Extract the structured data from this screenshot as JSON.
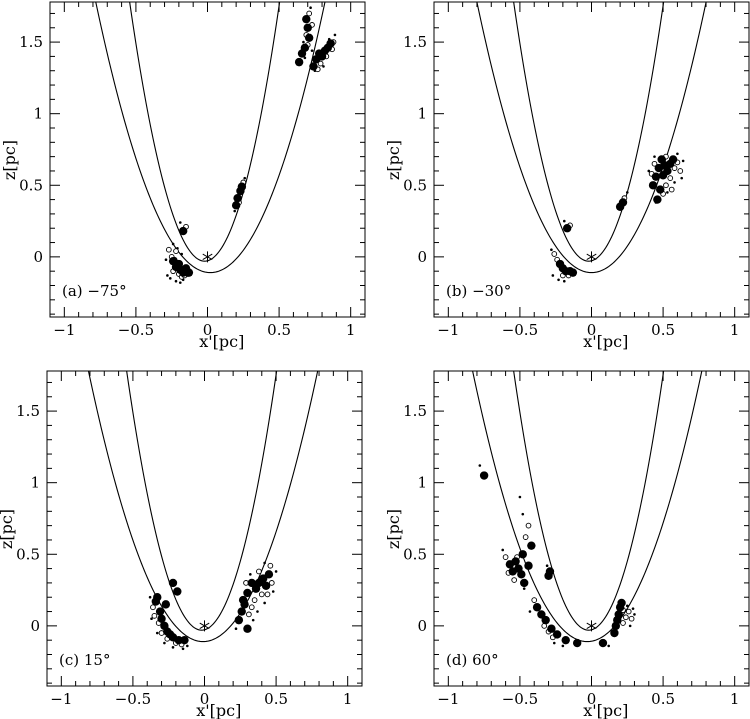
{
  "figure": {
    "xlabel": "x'[pc]",
    "ylabel": "z[pc]"
  },
  "chart_data": [
    {
      "type": "scatter",
      "label": "(a)  −75°",
      "xlabel": "x'[pc]",
      "ylabel": "z[pc]",
      "xlim": [
        -1.1,
        1.1
      ],
      "ylim": [
        -0.42,
        1.78
      ],
      "xticks": [
        -1,
        -0.5,
        0,
        0.5,
        1
      ],
      "yticks": [
        0,
        0.5,
        1,
        1.5
      ],
      "xtick_labels": [
        "−1",
        "−0.5",
        "0",
        "0.5",
        "1"
      ],
      "ytick_labels": [
        "0",
        "0.5",
        "1",
        "1.5"
      ],
      "star": [
        0,
        0
      ],
      "curves": [
        {
          "vertex": [
            0.02,
            -0.11
          ],
          "coef": 2.95
        },
        {
          "vertex": [
            -0.02,
            -0.03
          ],
          "coef": 6.6
        }
      ],
      "filled_points": [
        [
          -0.24,
          -0.03
        ],
        [
          -0.22,
          -0.07
        ],
        [
          -0.2,
          -0.05
        ],
        [
          -0.19,
          -0.09
        ],
        [
          -0.17,
          -0.11
        ],
        [
          -0.15,
          -0.08
        ],
        [
          -0.13,
          -0.11
        ],
        [
          -0.17,
          0.18
        ],
        [
          0.2,
          0.36
        ],
        [
          0.21,
          0.41
        ],
        [
          0.23,
          0.46
        ],
        [
          0.24,
          0.49
        ],
        [
          0.69,
          1.66
        ],
        [
          0.7,
          1.6
        ],
        [
          0.71,
          1.53
        ],
        [
          0.68,
          1.46
        ],
        [
          0.66,
          1.42
        ],
        [
          0.64,
          1.36
        ],
        [
          0.74,
          1.33
        ],
        [
          0.76,
          1.38
        ],
        [
          0.78,
          1.42
        ],
        [
          0.8,
          1.4
        ],
        [
          0.82,
          1.44
        ],
        [
          0.84,
          1.46
        ],
        [
          0.86,
          1.49
        ]
      ],
      "open_points": [
        [
          -0.27,
          0.05
        ],
        [
          -0.25,
          0.0
        ],
        [
          -0.23,
          -0.02
        ],
        [
          -0.21,
          -0.04
        ],
        [
          -0.24,
          -0.1
        ],
        [
          -0.2,
          -0.12
        ],
        [
          -0.18,
          -0.14
        ],
        [
          -0.16,
          -0.13
        ],
        [
          -0.14,
          -0.12
        ],
        [
          -0.22,
          0.04
        ],
        [
          -0.15,
          0.21
        ],
        [
          0.22,
          0.38
        ],
        [
          0.25,
          0.52
        ],
        [
          0.71,
          1.7
        ],
        [
          0.73,
          1.62
        ],
        [
          0.69,
          1.55
        ],
        [
          0.7,
          1.48
        ],
        [
          0.79,
          1.35
        ],
        [
          0.83,
          1.4
        ],
        [
          0.87,
          1.45
        ],
        [
          0.88,
          1.5
        ],
        [
          0.77,
          1.31
        ]
      ],
      "dot_points": [
        [
          -0.28,
          -0.13
        ],
        [
          -0.26,
          -0.15
        ],
        [
          -0.22,
          -0.17
        ],
        [
          -0.19,
          -0.18
        ],
        [
          -0.17,
          -0.16
        ],
        [
          -0.29,
          -0.02
        ],
        [
          -0.21,
          0.06
        ],
        [
          -0.18,
          0.02
        ],
        [
          -0.24,
          0.09
        ],
        [
          -0.19,
          0.24
        ],
        [
          0.26,
          0.55
        ],
        [
          0.19,
          0.32
        ],
        [
          0.72,
          1.74
        ],
        [
          0.67,
          1.5
        ],
        [
          0.73,
          1.44
        ],
        [
          0.75,
          1.3
        ],
        [
          0.89,
          1.55
        ],
        [
          0.85,
          1.52
        ],
        [
          0.81,
          1.33
        ],
        [
          0.68,
          1.39
        ]
      ]
    },
    {
      "type": "scatter",
      "label": "(b)  −30°",
      "xlabel": "x'[pc]",
      "ylabel": "z[pc]",
      "xlim": [
        -1.1,
        1.1
      ],
      "ylim": [
        -0.42,
        1.78
      ],
      "xticks": [
        -1,
        -0.5,
        0,
        0.5,
        1
      ],
      "yticks": [
        0,
        0.5,
        1,
        1.5
      ],
      "xtick_labels": [
        "−1",
        "−0.5",
        "0",
        "0.5",
        "1"
      ],
      "ytick_labels": [
        "0",
        "0.5",
        "1",
        "1.5"
      ],
      "star": [
        0,
        0
      ],
      "curves": [
        {
          "vertex": [
            0.0,
            -0.11
          ],
          "coef": 2.95
        },
        {
          "vertex": [
            -0.02,
            -0.03
          ],
          "coef": 6.6
        }
      ],
      "filled_points": [
        [
          -0.22,
          -0.05
        ],
        [
          -0.2,
          -0.08
        ],
        [
          -0.18,
          -0.1
        ],
        [
          -0.15,
          -0.1
        ],
        [
          -0.13,
          -0.11
        ],
        [
          -0.17,
          0.2
        ],
        [
          0.2,
          0.35
        ],
        [
          0.22,
          0.38
        ],
        [
          0.43,
          0.5
        ],
        [
          0.45,
          0.56
        ],
        [
          0.47,
          0.62
        ],
        [
          0.49,
          0.68
        ],
        [
          0.51,
          0.64
        ],
        [
          0.5,
          0.57
        ],
        [
          0.53,
          0.6
        ],
        [
          0.55,
          0.65
        ],
        [
          0.57,
          0.68
        ],
        [
          0.48,
          0.47
        ],
        [
          0.46,
          0.4
        ]
      ],
      "open_points": [
        [
          -0.26,
          0.02
        ],
        [
          -0.24,
          -0.02
        ],
        [
          -0.2,
          -0.13
        ],
        [
          -0.16,
          -0.13
        ],
        [
          -0.15,
          0.22
        ],
        [
          0.23,
          0.41
        ],
        [
          0.42,
          0.58
        ],
        [
          0.44,
          0.65
        ],
        [
          0.52,
          0.7
        ],
        [
          0.58,
          0.62
        ],
        [
          0.6,
          0.66
        ],
        [
          0.55,
          0.55
        ],
        [
          0.52,
          0.5
        ],
        [
          0.5,
          0.44
        ],
        [
          0.56,
          0.47
        ],
        [
          0.62,
          0.6
        ]
      ],
      "dot_points": [
        [
          -0.27,
          -0.13
        ],
        [
          -0.23,
          -0.16
        ],
        [
          -0.19,
          -0.17
        ],
        [
          -0.28,
          0.05
        ],
        [
          -0.19,
          0.25
        ],
        [
          0.25,
          0.45
        ],
        [
          0.4,
          0.6
        ],
        [
          0.44,
          0.7
        ],
        [
          0.6,
          0.72
        ],
        [
          0.64,
          0.67
        ],
        [
          0.58,
          0.52
        ],
        [
          0.53,
          0.45
        ],
        [
          0.45,
          0.38
        ],
        [
          0.63,
          0.55
        ]
      ]
    },
    {
      "type": "scatter",
      "label": "(c)  15°",
      "xlabel": "x'[pc]",
      "ylabel": "z[pc]",
      "xlim": [
        -1.1,
        1.1
      ],
      "ylim": [
        -0.42,
        1.78
      ],
      "xticks": [
        -1,
        -0.5,
        0,
        0.5,
        1
      ],
      "yticks": [
        0,
        0.5,
        1,
        1.5
      ],
      "xtick_labels": [
        "−1",
        "−0.5",
        "0",
        "0.5",
        "1"
      ],
      "ytick_labels": [
        "0",
        "0.5",
        "1",
        "1.5"
      ],
      "star": [
        0,
        0
      ],
      "curves": [
        {
          "vertex": [
            -0.01,
            -0.11
          ],
          "coef": 2.95
        },
        {
          "vertex": [
            -0.02,
            -0.03
          ],
          "coef": 6.6
        }
      ],
      "filled_points": [
        [
          -0.34,
          0.17
        ],
        [
          -0.33,
          0.2
        ],
        [
          -0.31,
          0.1
        ],
        [
          -0.3,
          0.05
        ],
        [
          -0.28,
          0.0
        ],
        [
          -0.26,
          -0.04
        ],
        [
          -0.24,
          -0.06
        ],
        [
          -0.22,
          -0.08
        ],
        [
          -0.18,
          -0.1
        ],
        [
          -0.14,
          -0.1
        ],
        [
          -0.22,
          0.3
        ],
        [
          -0.19,
          0.24
        ],
        [
          -0.27,
          0.15
        ],
        [
          0.24,
          0.04
        ],
        [
          0.26,
          0.1
        ],
        [
          0.28,
          0.15
        ],
        [
          0.3,
          0.23
        ],
        [
          0.33,
          0.3
        ],
        [
          0.36,
          0.26
        ],
        [
          0.38,
          0.3
        ],
        [
          0.41,
          0.33
        ],
        [
          0.43,
          0.28
        ],
        [
          0.45,
          0.36
        ],
        [
          0.3,
          -0.02
        ],
        [
          0.27,
          0.18
        ]
      ],
      "open_points": [
        [
          -0.36,
          0.13
        ],
        [
          -0.35,
          0.07
        ],
        [
          -0.32,
          0.02
        ],
        [
          -0.3,
          -0.05
        ],
        [
          -0.26,
          -0.09
        ],
        [
          -0.2,
          -0.12
        ],
        [
          -0.16,
          -0.13
        ],
        [
          0.31,
          0.08
        ],
        [
          0.33,
          0.13
        ],
        [
          0.35,
          0.18
        ],
        [
          0.4,
          0.22
        ],
        [
          0.44,
          0.22
        ],
        [
          0.47,
          0.3
        ],
        [
          0.38,
          0.38
        ],
        [
          0.29,
          0.3
        ],
        [
          0.46,
          0.42
        ]
      ],
      "dot_points": [
        [
          -0.38,
          0.2
        ],
        [
          -0.37,
          0.05
        ],
        [
          -0.33,
          -0.05
        ],
        [
          -0.28,
          -0.12
        ],
        [
          -0.22,
          -0.15
        ],
        [
          -0.15,
          -0.16
        ],
        [
          -0.12,
          -0.14
        ],
        [
          0.34,
          0.04
        ],
        [
          0.37,
          0.1
        ],
        [
          0.42,
          0.16
        ],
        [
          0.48,
          0.24
        ],
        [
          0.5,
          0.38
        ],
        [
          0.42,
          0.44
        ],
        [
          0.32,
          0.36
        ],
        [
          0.22,
          -0.02
        ]
      ]
    },
    {
      "type": "scatter",
      "label": "(d)  60°",
      "xlabel": "x'[pc]",
      "ylabel": "z[pc]",
      "xlim": [
        -1.1,
        1.1
      ],
      "ylim": [
        -0.42,
        1.78
      ],
      "xticks": [
        -1,
        -0.5,
        0,
        0.5,
        1
      ],
      "yticks": [
        0,
        0.5,
        1,
        1.5
      ],
      "xtick_labels": [
        "−1",
        "−0.5",
        "0",
        "0.5",
        "1"
      ],
      "ytick_labels": [
        "0",
        "0.5",
        "1",
        "1.5"
      ],
      "star": [
        0,
        0
      ],
      "curves": [
        {
          "vertex": [
            -0.03,
            -0.11
          ],
          "coef": 2.95
        },
        {
          "vertex": [
            -0.02,
            -0.03
          ],
          "coef": 6.6
        }
      ],
      "filled_points": [
        [
          -0.75,
          1.05
        ],
        [
          -0.57,
          0.43
        ],
        [
          -0.55,
          0.38
        ],
        [
          -0.53,
          0.45
        ],
        [
          -0.51,
          0.4
        ],
        [
          -0.49,
          0.36
        ],
        [
          -0.48,
          0.5
        ],
        [
          -0.47,
          0.3
        ],
        [
          -0.44,
          0.42
        ],
        [
          -0.42,
          0.56
        ],
        [
          -0.3,
          0.35
        ],
        [
          -0.29,
          0.38
        ],
        [
          -0.38,
          0.13
        ],
        [
          -0.35,
          0.08
        ],
        [
          -0.32,
          0.04
        ],
        [
          -0.28,
          -0.02
        ],
        [
          -0.24,
          -0.06
        ],
        [
          -0.18,
          -0.1
        ],
        [
          -0.1,
          -0.12
        ],
        [
          0.08,
          -0.12
        ],
        [
          0.16,
          -0.05
        ],
        [
          0.17,
          0.0
        ],
        [
          0.18,
          0.04
        ],
        [
          0.19,
          0.08
        ],
        [
          0.2,
          0.13
        ],
        [
          0.21,
          0.16
        ]
      ],
      "open_points": [
        [
          -0.6,
          0.48
        ],
        [
          -0.58,
          0.37
        ],
        [
          -0.54,
          0.32
        ],
        [
          -0.52,
          0.48
        ],
        [
          -0.46,
          0.62
        ],
        [
          -0.44,
          0.7
        ],
        [
          -0.4,
          0.18
        ],
        [
          -0.33,
          0.0
        ],
        [
          -0.3,
          -0.04
        ],
        [
          -0.27,
          -0.08
        ],
        [
          0.22,
          0.02
        ],
        [
          0.24,
          0.06
        ],
        [
          0.26,
          0.1
        ],
        [
          0.28,
          0.05
        ],
        [
          0.22,
          0.11
        ]
      ],
      "dot_points": [
        [
          -0.78,
          1.12
        ],
        [
          -0.62,
          0.53
        ],
        [
          -0.5,
          0.9
        ],
        [
          -0.48,
          0.78
        ],
        [
          -0.47,
          0.26
        ],
        [
          -0.43,
          0.1
        ],
        [
          -0.31,
          0.42
        ],
        [
          -0.26,
          -0.12
        ],
        [
          -0.2,
          -0.14
        ],
        [
          0.12,
          -0.14
        ],
        [
          0.27,
          0.0
        ],
        [
          0.29,
          0.12
        ],
        [
          0.25,
          0.14
        ],
        [
          0.3,
          0.08
        ]
      ]
    }
  ]
}
